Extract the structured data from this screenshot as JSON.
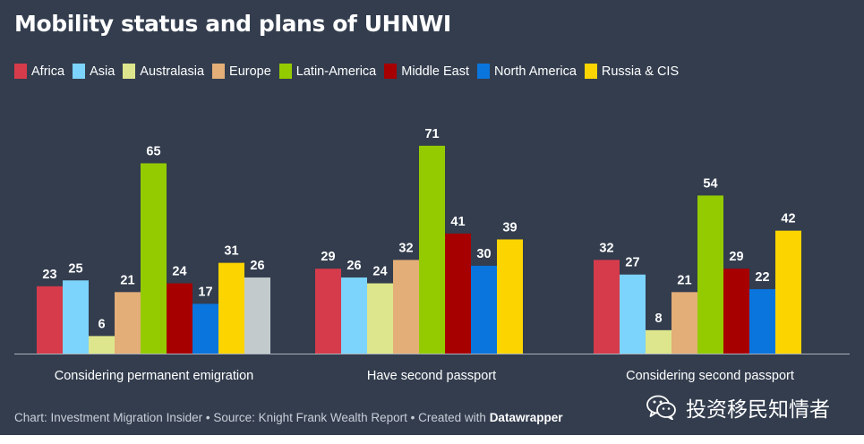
{
  "colors": {
    "background": "#333d4e",
    "axis": "#aab0bb",
    "text": "#ffffff"
  },
  "chart_data": {
    "type": "bar",
    "title": "Mobility status and plans of UHNWI",
    "categories": [
      "Considering permanent emigration",
      "Have second passport",
      "Considering second passport"
    ],
    "ylim": [
      0,
      75
    ],
    "grid": false,
    "legend_position": "top",
    "series": [
      {
        "name": "Africa",
        "color": "#d63b4b",
        "values": [
          23,
          29,
          32
        ]
      },
      {
        "name": "Asia",
        "color": "#7cd3fb",
        "values": [
          25,
          26,
          27
        ]
      },
      {
        "name": "Australasia",
        "color": "#dde68c",
        "values": [
          6,
          24,
          8
        ]
      },
      {
        "name": "Europe",
        "color": "#e3ae78",
        "values": [
          21,
          32,
          21
        ]
      },
      {
        "name": "Latin-America",
        "color": "#94cb00",
        "values": [
          65,
          71,
          54
        ]
      },
      {
        "name": "Middle East",
        "color": "#a70000",
        "values": [
          24,
          41,
          29
        ]
      },
      {
        "name": "North America",
        "color": "#0a75dc",
        "values": [
          17,
          30,
          22
        ]
      },
      {
        "name": "Russia & CIS",
        "color": "#fcd400",
        "values": [
          31,
          39,
          42
        ]
      }
    ],
    "extra_bar": {
      "color": "#c2cacc",
      "group": 0,
      "value": 26
    }
  },
  "footer": {
    "prefix": "Chart: Investment Migration Insider • Source: Knight Frank Wealth Report • Created with ",
    "brand": "Datawrapper"
  },
  "watermark": {
    "text": "投资移民知情者",
    "icon": "wechat-icon"
  }
}
